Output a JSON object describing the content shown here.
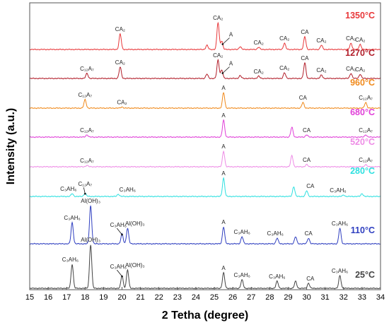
{
  "chart_data": {
    "type": "line",
    "xlabel": "2 Tetha (degree)",
    "ylabel": "Intensity (a.u.)",
    "xlim": [
      15,
      34
    ],
    "x_ticks": [
      15,
      16,
      17,
      18,
      19,
      20,
      21,
      22,
      23,
      24,
      25,
      26,
      27,
      28,
      29,
      30,
      31,
      32,
      33,
      34
    ],
    "grid": false,
    "series": [
      {
        "name": "1350°C",
        "color": "#e8383a",
        "peaks": [
          [
            19.9,
            0.55
          ],
          [
            24.6,
            0.15
          ],
          [
            25.2,
            0.95
          ],
          [
            25.4,
            0.3
          ],
          [
            26.4,
            0.1
          ],
          [
            27.4,
            0.08
          ],
          [
            28.8,
            0.22
          ],
          [
            29.9,
            0.45
          ],
          [
            30.8,
            0.15
          ],
          [
            32.4,
            0.22
          ],
          [
            32.9,
            0.18
          ]
        ],
        "labels": [
          {
            "text": "CA₂",
            "x": 19.9,
            "tx": 19.9
          },
          {
            "text": "CA₂",
            "x": 25.2,
            "tx": 25.2
          },
          {
            "text": "A",
            "x": 25.45,
            "tx": 25.9,
            "arrow": true
          },
          {
            "text": "CA₂",
            "x": 27.4,
            "tx": 27.4
          },
          {
            "text": "CA₂",
            "x": 28.8,
            "tx": 28.8
          },
          {
            "text": "CA",
            "x": 29.9,
            "tx": 29.9
          },
          {
            "text": "CA₂",
            "x": 30.8,
            "tx": 30.8
          },
          {
            "text": "CA₂",
            "x": 32.4,
            "tx": 32.4
          },
          {
            "text": "CA₂",
            "x": 32.9,
            "tx": 32.9
          }
        ]
      },
      {
        "name": "1270°C",
        "color": "#b21e2a",
        "peaks": [
          [
            18.1,
            0.18
          ],
          [
            19.9,
            0.4
          ],
          [
            24.6,
            0.15
          ],
          [
            25.2,
            0.65
          ],
          [
            25.4,
            0.3
          ],
          [
            26.4,
            0.1
          ],
          [
            27.4,
            0.08
          ],
          [
            28.8,
            0.2
          ],
          [
            29.9,
            0.55
          ],
          [
            30.8,
            0.12
          ],
          [
            32.4,
            0.18
          ],
          [
            32.9,
            0.15
          ]
        ],
        "labels": [
          {
            "text": "C₁₂A₇",
            "x": 18.1,
            "tx": 18.1
          },
          {
            "text": "CA₂",
            "x": 19.9,
            "tx": 19.9
          },
          {
            "text": "CA₂",
            "x": 25.2,
            "tx": 25.2
          },
          {
            "text": "A",
            "x": 25.45,
            "tx": 25.9,
            "arrow": true
          },
          {
            "text": "CA₂",
            "x": 27.4,
            "tx": 27.4
          },
          {
            "text": "CA₂",
            "x": 28.8,
            "tx": 28.8
          },
          {
            "text": "CA",
            "x": 29.9,
            "tx": 29.9
          },
          {
            "text": "CA₂",
            "x": 30.8,
            "tx": 30.8
          },
          {
            "text": "CA₂",
            "x": 32.4,
            "tx": 32.4
          },
          {
            "text": "CA₂",
            "x": 32.9,
            "tx": 32.9
          }
        ]
      },
      {
        "name": "960°C",
        "color": "#f08a1c",
        "peaks": [
          [
            18.0,
            0.3
          ],
          [
            20.0,
            0.04
          ],
          [
            25.5,
            0.55
          ],
          [
            29.8,
            0.2
          ],
          [
            33.2,
            0.2
          ]
        ],
        "labels": [
          {
            "text": "C₁₂A₇",
            "x": 18.0,
            "tx": 18.0
          },
          {
            "text": "CA₂",
            "x": 20.0,
            "tx": 20.0
          },
          {
            "text": "A",
            "x": 25.5,
            "tx": 25.5
          },
          {
            "text": "CA",
            "x": 29.8,
            "tx": 29.8
          },
          {
            "text": "C₁₂A₇",
            "x": 33.2,
            "tx": 33.2
          }
        ]
      },
      {
        "name": "680°C",
        "color": "#e040d8",
        "peaks": [
          [
            18.1,
            0.08
          ],
          [
            25.5,
            0.6
          ],
          [
            29.2,
            0.35
          ],
          [
            30.0,
            0.08
          ],
          [
            33.2,
            0.08
          ]
        ],
        "labels": [
          {
            "text": "C₁₂A₇",
            "x": 18.1,
            "tx": 18.1
          },
          {
            "text": "A",
            "x": 25.5,
            "tx": 25.5
          },
          {
            "text": "CA",
            "x": 30.0,
            "tx": 30.0
          },
          {
            "text": "C₁₂A₇",
            "x": 33.2,
            "tx": 33.2
          }
        ]
      },
      {
        "name": "520°C",
        "color": "#ee8ce6",
        "peaks": [
          [
            18.1,
            0.05
          ],
          [
            25.5,
            0.55
          ],
          [
            29.2,
            0.4
          ],
          [
            30.0,
            0.08
          ],
          [
            33.2,
            0.08
          ]
        ],
        "labels": [
          {
            "text": "C₁₂A₇",
            "x": 18.1,
            "tx": 18.1
          },
          {
            "text": "A",
            "x": 25.5,
            "tx": 25.5
          },
          {
            "text": "CA",
            "x": 30.0,
            "tx": 30.0
          },
          {
            "text": "C₁₂A₇",
            "x": 33.2,
            "tx": 33.2
          }
        ]
      },
      {
        "name": "280°C",
        "color": "#2ee0e0",
        "peaks": [
          [
            17.3,
            0.1
          ],
          [
            18.0,
            0.12
          ],
          [
            19.8,
            0.08
          ],
          [
            25.5,
            0.65
          ],
          [
            29.3,
            0.35
          ],
          [
            30.0,
            0.2
          ],
          [
            32.0,
            0.05
          ],
          [
            33.0,
            0.1
          ]
        ],
        "labels": [
          {
            "text": "C₃AH₆",
            "x": 17.3,
            "tx": 17.1
          },
          {
            "text": "C₁₂A₇",
            "x": 18.0,
            "tx": 18.0,
            "arrow": true
          },
          {
            "text": "C₃AH₆",
            "x": 19.8,
            "tx": 20.3
          },
          {
            "text": "A",
            "x": 25.5,
            "tx": 25.5
          },
          {
            "text": "CA",
            "x": 30.0,
            "tx": 30.2
          },
          {
            "text": "C₃AH₆",
            "x": 32.0,
            "tx": 31.7
          }
        ]
      },
      {
        "name": "110°C",
        "color": "#2f3fc0",
        "peaks": [
          [
            17.3,
            0.75
          ],
          [
            18.3,
            1.35
          ],
          [
            20.0,
            0.35
          ],
          [
            20.3,
            0.55
          ],
          [
            25.5,
            0.6
          ],
          [
            26.5,
            0.25
          ],
          [
            28.4,
            0.2
          ],
          [
            29.4,
            0.25
          ],
          [
            30.1,
            0.2
          ],
          [
            31.8,
            0.55
          ]
        ],
        "labels": [
          {
            "text": "C₃AH₆",
            "x": 17.3,
            "tx": 17.3
          },
          {
            "text": "Al(OH)₃",
            "x": 18.3,
            "tx": 18.3
          },
          {
            "text": "C₃AH₆",
            "x": 20.0,
            "tx": 19.8,
            "arrow": true
          },
          {
            "text": "Al(OH)₃",
            "x": 20.3,
            "tx": 20.7
          },
          {
            "text": "A",
            "x": 25.5,
            "tx": 25.5
          },
          {
            "text": "C₃AH₆",
            "x": 26.5,
            "tx": 26.5
          },
          {
            "text": "C₃AH₆",
            "x": 28.4,
            "tx": 28.3
          },
          {
            "text": "CA",
            "x": 30.1,
            "tx": 30.1
          },
          {
            "text": "C₃AH₆",
            "x": 31.8,
            "tx": 31.8
          }
        ]
      },
      {
        "name": "25°C",
        "color": "#444444",
        "peaks": [
          [
            17.3,
            0.85
          ],
          [
            18.3,
            1.55
          ],
          [
            20.0,
            0.45
          ],
          [
            20.3,
            0.65
          ],
          [
            25.5,
            0.55
          ],
          [
            26.5,
            0.3
          ],
          [
            28.4,
            0.25
          ],
          [
            29.4,
            0.25
          ],
          [
            30.1,
            0.18
          ],
          [
            31.8,
            0.45
          ]
        ],
        "labels": [
          {
            "text": "C₃AH₆",
            "x": 17.3,
            "tx": 17.2
          },
          {
            "text": "Al(OH)₃",
            "x": 18.3,
            "tx": 18.3
          },
          {
            "text": "C₃AH₆",
            "x": 20.0,
            "tx": 19.8,
            "arrow": true
          },
          {
            "text": "Al(OH)₃",
            "x": 20.3,
            "tx": 20.7
          },
          {
            "text": "A",
            "x": 25.5,
            "tx": 25.5
          },
          {
            "text": "C₃AH₆",
            "x": 26.5,
            "tx": 26.5
          },
          {
            "text": "C₃AH₆",
            "x": 28.4,
            "tx": 28.4
          },
          {
            "text": "CA",
            "x": 30.1,
            "tx": 30.2
          },
          {
            "text": "C₃AH₆",
            "x": 31.8,
            "tx": 31.8
          }
        ]
      }
    ]
  }
}
